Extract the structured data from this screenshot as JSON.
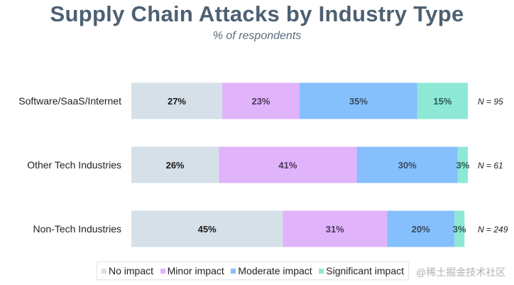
{
  "chart_data": {
    "type": "bar",
    "orientation": "horizontal",
    "stacked": true,
    "title": "Supply Chain Attacks by Industry Type",
    "subtitle": "% of respondents",
    "categories": [
      "Software/SaaS/Internet",
      "Other Tech Industries",
      "Non-Tech Industries"
    ],
    "sample_sizes": [
      "N = 95",
      "N = 61",
      "N = 249"
    ],
    "series": [
      {
        "name": "No impact",
        "color": "#d6e0e8",
        "values": [
          27,
          26,
          45
        ]
      },
      {
        "name": "Minor impact",
        "color": "#e0b3fb",
        "values": [
          23,
          41,
          31
        ]
      },
      {
        "name": "Moderate impact",
        "color": "#85bffc",
        "values": [
          35,
          30,
          20
        ]
      },
      {
        "name": "Significant impact",
        "color": "#8ee8d6",
        "values": [
          15,
          3,
          3
        ]
      }
    ],
    "legend_labels": [
      "No impact",
      "Minor impact",
      "Moderate impact",
      "Significant impact"
    ],
    "xlim": [
      0,
      100
    ],
    "grid": false,
    "legend_position": "bottom"
  },
  "watermark": "@稀土掘金技术社区"
}
